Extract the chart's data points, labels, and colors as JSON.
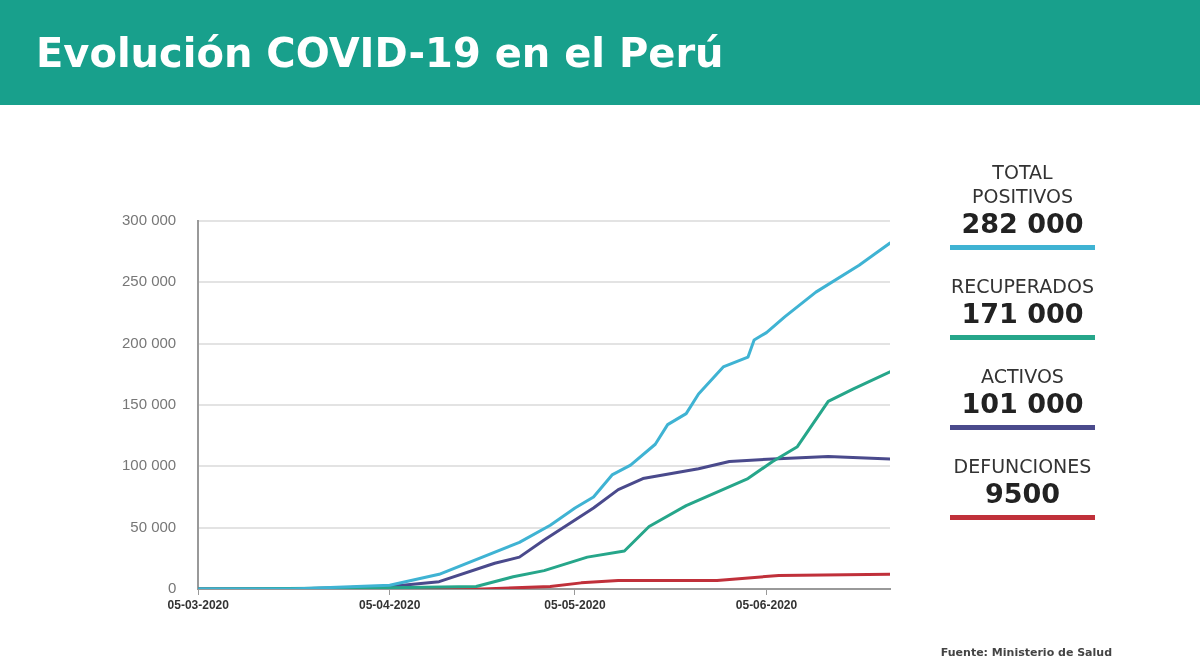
{
  "chart_data": {
    "type": "line",
    "title": "Evolución COVID-19 en el Perú",
    "xlim": [
      "2020-03-05",
      "2020-06-25"
    ],
    "xticks": [
      {
        "value": "2020-03-05",
        "label": "05-03-2020"
      },
      {
        "value": "2020-04-05",
        "label": "05-04-2020"
      },
      {
        "value": "2020-05-05",
        "label": "05-05-2020"
      },
      {
        "value": "2020-06-05",
        "label": "05-06-2020"
      }
    ],
    "ylim": [
      0,
      300000
    ],
    "yticks": [
      0,
      {
        "value": 50000,
        "label": "50 000"
      },
      {
        "value": 100000,
        "label": "100 000"
      },
      {
        "value": 150000,
        "label": "150 000"
      },
      {
        "value": 200000,
        "label": "200 000"
      },
      {
        "value": 250000,
        "label": "250 000"
      },
      {
        "value": 300000,
        "label": "300 000"
      }
    ],
    "grid": "y",
    "legend": "right",
    "marker": "none",
    "line_style": "solid",
    "series": [
      {
        "name": "TOTAL POSITIVOS",
        "color": "#3fb3d3",
        "x": [
          "2020-03-05",
          "2020-03-20",
          "2020-04-05",
          "2020-04-13",
          "2020-04-26",
          "2020-05-01",
          "2020-05-05",
          "2020-05-08",
          "2020-05-11",
          "2020-05-14",
          "2020-05-18",
          "2020-05-20",
          "2020-05-23",
          "2020-05-25",
          "2020-05-29",
          "2020-06-02",
          "2020-06-03",
          "2020-06-05",
          "2020-06-08",
          "2020-06-13",
          "2020-06-20",
          "2020-06-25"
        ],
        "values": [
          0,
          0,
          3000,
          12000,
          38000,
          52000,
          66000,
          75000,
          93000,
          101000,
          118000,
          134000,
          143000,
          159000,
          181000,
          189000,
          203000,
          209000,
          222000,
          242000,
          264000,
          282000
        ]
      },
      {
        "name": "RECUPERADOS",
        "color": "#26a68a",
        "x": [
          "2020-03-05",
          "2020-04-05",
          "2020-04-19",
          "2020-04-25",
          "2020-04-30",
          "2020-05-07",
          "2020-05-13",
          "2020-05-17",
          "2020-05-23",
          "2020-06-02",
          "2020-06-06",
          "2020-06-10",
          "2020-06-15",
          "2020-06-19",
          "2020-06-25"
        ],
        "values": [
          0,
          1000,
          2000,
          10000,
          15000,
          26000,
          31000,
          51000,
          68000,
          90000,
          104000,
          116000,
          153000,
          163000,
          177000
        ]
      },
      {
        "name": "ACTIVOS",
        "color": "#4a4a8c",
        "x": [
          "2020-03-05",
          "2020-03-20",
          "2020-04-05",
          "2020-04-13",
          "2020-04-22",
          "2020-04-26",
          "2020-04-30",
          "2020-05-08",
          "2020-05-12",
          "2020-05-16",
          "2020-05-25",
          "2020-05-30",
          "2020-06-06",
          "2020-06-15",
          "2020-06-25"
        ],
        "values": [
          0,
          0,
          2000,
          6000,
          21000,
          26000,
          40000,
          66000,
          81000,
          90000,
          98000,
          104000,
          106000,
          108000,
          106000
        ]
      },
      {
        "name": "DEFUNCIONES",
        "color": "#c0303a",
        "x": [
          "2020-03-05",
          "2020-04-05",
          "2020-04-20",
          "2020-05-01",
          "2020-05-06",
          "2020-05-12",
          "2020-05-28",
          "2020-06-07",
          "2020-06-25"
        ],
        "values": [
          0,
          0,
          0,
          2000,
          5000,
          7000,
          7000,
          11000,
          12000
        ]
      }
    ],
    "annotations": [
      "282 000",
      "171 000",
      "101 000",
      "9500",
      "Fuente: Ministerio de Salud"
    ]
  }
}
